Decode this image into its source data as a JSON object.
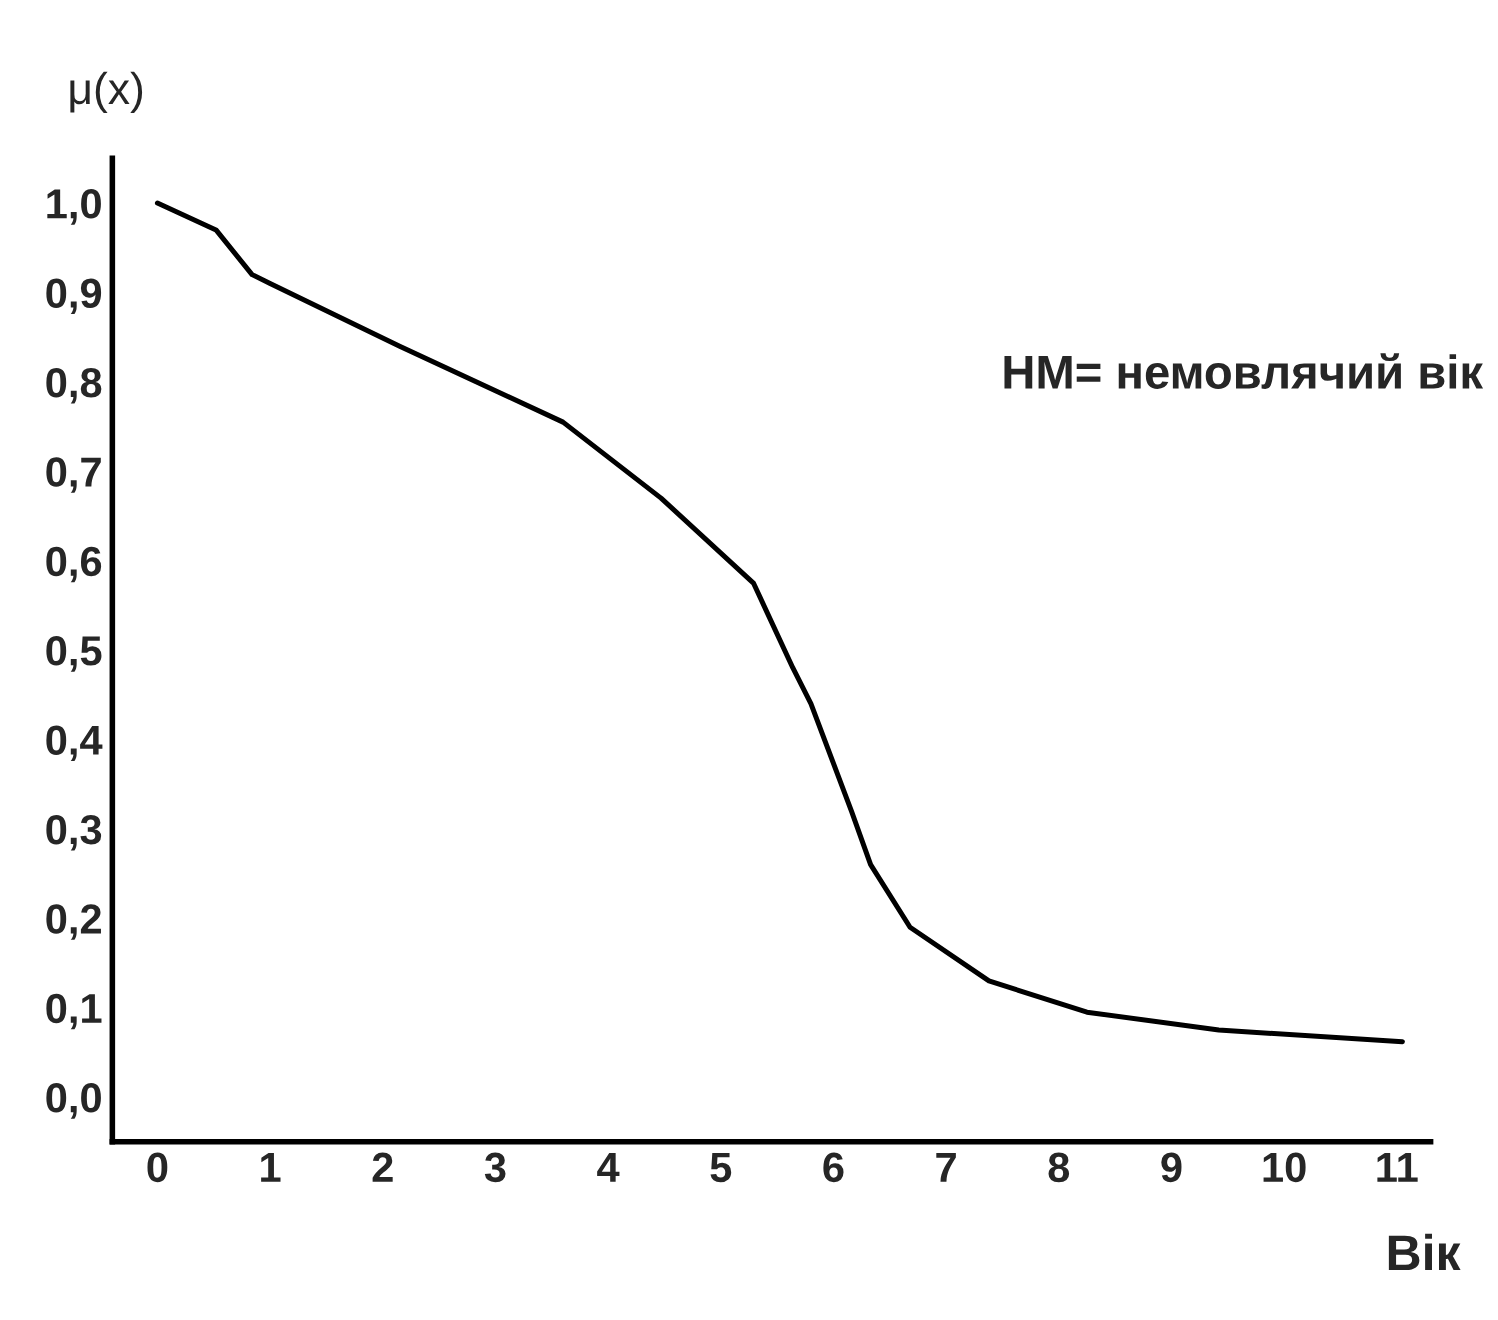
{
  "chart_data": {
    "type": "line",
    "ylabel": "μ(x)",
    "xlabel": "Вік",
    "annotations": [
      "НМ= немовлячий вік"
    ],
    "series": [
      {
        "color": "#000000",
        "x": [
          0,
          0.52,
          0.84,
          1.0,
          2.15,
          3.6,
          4.47,
          5.29,
          5.64,
          5.8,
          6.16,
          6.33,
          6.68,
          7.38,
          8.25,
          9.42,
          11.05
        ],
        "values": [
          1.0,
          0.97,
          0.92,
          0.91,
          0.84,
          0.755,
          0.67,
          0.575,
          0.48,
          0.44,
          0.32,
          0.26,
          0.19,
          0.13,
          0.095,
          0.075,
          0.062
        ]
      }
    ],
    "xlim": [
      -0.4,
      11.3
    ],
    "ylim": [
      -0.05,
      1.05
    ],
    "xticks": [
      0,
      1,
      2,
      3,
      4,
      5,
      6,
      7,
      8,
      9,
      10,
      11
    ],
    "yticks": [
      {
        "value": 0,
        "label": "0,0"
      },
      {
        "value": 0.1,
        "label": "0,1"
      },
      {
        "value": 0.2,
        "label": "0,2"
      },
      {
        "value": 0.3,
        "label": "0,3"
      },
      {
        "value": 0.4,
        "label": "0,4"
      },
      {
        "value": 0.5,
        "label": "0,5"
      },
      {
        "value": 0.6,
        "label": "0,6"
      },
      {
        "value": 0.7,
        "label": "0,7"
      },
      {
        "value": 0.8,
        "label": "0,8"
      },
      {
        "value": 0.9,
        "label": "0,9"
      },
      {
        "value": 1.0,
        "label": "1,0"
      }
    ],
    "grid": false,
    "legend": false,
    "marker": "none",
    "line_style": "solid"
  }
}
